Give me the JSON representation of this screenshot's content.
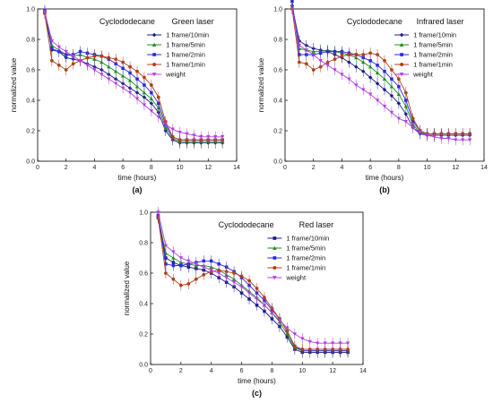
{
  "chart_data": [
    {
      "panel_label": "(a)",
      "type": "line",
      "title": "Cyclododecane",
      "subtitle": "Green laser",
      "subtitle_color": "#2e8b2e",
      "xlabel": "time (hours)",
      "ylabel": "normalized value",
      "xlim": [
        0,
        14
      ],
      "ylim": [
        0,
        1.0
      ],
      "xticks": [
        "0",
        "2",
        "4",
        "6",
        "8",
        "10",
        "12",
        "14"
      ],
      "yticks": [
        "0.0",
        "0.2",
        "0.4",
        "0.6",
        "0.8",
        "1.0"
      ],
      "legend_position": "top-right",
      "series": [
        {
          "name": "1 frame/10min",
          "color": "#1a1a8c",
          "marker": "diamond",
          "x": [
            0.5,
            1,
            1.5,
            2,
            2.5,
            3,
            3.5,
            4,
            4.5,
            5,
            5.5,
            6,
            6.5,
            7,
            7.5,
            8,
            8.5,
            9,
            9.5,
            10,
            10.5,
            11,
            11.5,
            12,
            12.5,
            13
          ],
          "y": [
            0.98,
            0.73,
            0.72,
            0.68,
            0.67,
            0.66,
            0.64,
            0.62,
            0.6,
            0.57,
            0.54,
            0.51,
            0.48,
            0.45,
            0.42,
            0.38,
            0.32,
            0.2,
            0.14,
            0.12,
            0.12,
            0.12,
            0.12,
            0.12,
            0.12,
            0.12
          ]
        },
        {
          "name": "1 frame/5min",
          "color": "#1e8c1e",
          "marker": "triangle",
          "x": [
            0.5,
            1,
            1.5,
            2,
            2.5,
            3,
            3.5,
            4,
            4.5,
            5,
            5.5,
            6,
            6.5,
            7,
            7.5,
            8,
            8.5,
            9,
            9.5,
            10,
            10.5,
            11,
            11.5,
            12,
            12.5,
            13
          ],
          "y": [
            0.98,
            0.76,
            0.73,
            0.7,
            0.69,
            0.7,
            0.68,
            0.67,
            0.65,
            0.62,
            0.59,
            0.56,
            0.53,
            0.49,
            0.45,
            0.41,
            0.35,
            0.22,
            0.15,
            0.13,
            0.13,
            0.13,
            0.13,
            0.13,
            0.13,
            0.13
          ]
        },
        {
          "name": "1 frame/2min",
          "color": "#2a2ae0",
          "marker": "square",
          "x": [
            0.5,
            1,
            1.5,
            2,
            2.5,
            3,
            3.5,
            4,
            4.5,
            5,
            5.5,
            6,
            6.5,
            7,
            7.5,
            8,
            8.5,
            9,
            9.5,
            10,
            10.5,
            11,
            11.5,
            12,
            12.5,
            13
          ],
          "y": [
            0.99,
            0.74,
            0.72,
            0.7,
            0.7,
            0.72,
            0.71,
            0.7,
            0.69,
            0.67,
            0.64,
            0.61,
            0.58,
            0.54,
            0.5,
            0.45,
            0.38,
            0.24,
            0.16,
            0.14,
            0.14,
            0.14,
            0.14,
            0.14,
            0.14,
            0.14
          ]
        },
        {
          "name": "1 frame/1min",
          "color": "#b0401a",
          "marker": "circle",
          "x": [
            0.5,
            1,
            1.5,
            2,
            2.5,
            3,
            3.5,
            4,
            4.5,
            5,
            5.5,
            6,
            6.5,
            7,
            7.5,
            8,
            8.5,
            9,
            9.5,
            10,
            10.5,
            11,
            11.5,
            12,
            12.5,
            13
          ],
          "y": [
            0.97,
            0.66,
            0.63,
            0.6,
            0.64,
            0.66,
            0.68,
            0.69,
            0.69,
            0.68,
            0.67,
            0.65,
            0.62,
            0.59,
            0.55,
            0.5,
            0.42,
            0.26,
            0.16,
            0.14,
            0.14,
            0.14,
            0.14,
            0.14,
            0.14,
            0.14
          ]
        },
        {
          "name": "weight",
          "color": "#b040e0",
          "marker": "triangle-down",
          "x": [
            0.5,
            1,
            1.5,
            2,
            2.5,
            3,
            3.5,
            4,
            4.5,
            5,
            5.5,
            6,
            6.5,
            7,
            7.5,
            8,
            8.5,
            9,
            9.5,
            10,
            10.5,
            11,
            11.5,
            12,
            12.5,
            13
          ],
          "y": [
            0.98,
            0.79,
            0.75,
            0.72,
            0.69,
            0.66,
            0.63,
            0.6,
            0.57,
            0.54,
            0.51,
            0.48,
            0.45,
            0.41,
            0.37,
            0.33,
            0.29,
            0.24,
            0.21,
            0.19,
            0.18,
            0.17,
            0.16,
            0.16,
            0.16,
            0.16
          ]
        }
      ]
    },
    {
      "panel_label": "(b)",
      "type": "line",
      "title": "Cyclododecane",
      "subtitle": "Infrared laser",
      "subtitle_color": "#8b3a1a",
      "xlabel": "time (hours)",
      "ylabel": "normalized value",
      "xlim": [
        0,
        14
      ],
      "ylim": [
        0,
        1.0
      ],
      "xticks": [
        "0",
        "2",
        "4",
        "6",
        "8",
        "10",
        "12",
        "14"
      ],
      "yticks": [
        "0.0",
        "0.2",
        "0.4",
        "0.6",
        "0.8",
        "1.0"
      ],
      "legend_position": "top-right",
      "series": [
        {
          "name": "1 frame/10min",
          "color": "#1a1a8c",
          "marker": "diamond",
          "x": [
            0.5,
            1,
            1.5,
            2,
            2.5,
            3,
            3.5,
            4,
            4.5,
            5,
            5.5,
            6,
            6.5,
            7,
            7.5,
            8,
            8.5,
            9,
            9.5,
            10,
            10.5,
            11,
            11.5,
            12,
            12.5,
            13
          ],
          "y": [
            1.02,
            0.79,
            0.76,
            0.74,
            0.73,
            0.72,
            0.7,
            0.68,
            0.65,
            0.62,
            0.59,
            0.55,
            0.51,
            0.47,
            0.43,
            0.38,
            0.31,
            0.22,
            0.18,
            0.17,
            0.17,
            0.17,
            0.17,
            0.17,
            0.17,
            0.17
          ]
        },
        {
          "name": "1 frame/5min",
          "color": "#1e8c1e",
          "marker": "triangle",
          "x": [
            0.5,
            1,
            1.5,
            2,
            2.5,
            3,
            3.5,
            4,
            4.5,
            5,
            5.5,
            6,
            6.5,
            7,
            7.5,
            8,
            8.5,
            9,
            9.5,
            10,
            10.5,
            11,
            11.5,
            12,
            12.5,
            13
          ],
          "y": [
            1.03,
            0.74,
            0.73,
            0.72,
            0.72,
            0.73,
            0.72,
            0.71,
            0.7,
            0.68,
            0.65,
            0.62,
            0.58,
            0.54,
            0.49,
            0.44,
            0.36,
            0.24,
            0.19,
            0.18,
            0.18,
            0.18,
            0.18,
            0.18,
            0.18,
            0.18
          ]
        },
        {
          "name": "1 frame/2min",
          "color": "#2a2ae0",
          "marker": "square",
          "x": [
            0.5,
            1,
            1.5,
            2,
            2.5,
            3,
            3.5,
            4,
            4.5,
            5,
            5.5,
            6,
            6.5,
            7,
            7.5,
            8,
            8.5,
            9,
            9.5,
            10,
            10.5,
            11,
            11.5,
            12,
            12.5,
            13
          ],
          "y": [
            1.05,
            0.7,
            0.7,
            0.7,
            0.71,
            0.72,
            0.72,
            0.72,
            0.71,
            0.7,
            0.68,
            0.66,
            0.63,
            0.59,
            0.54,
            0.49,
            0.4,
            0.26,
            0.2,
            0.18,
            0.18,
            0.18,
            0.18,
            0.18,
            0.18,
            0.18
          ]
        },
        {
          "name": "1 frame/1min",
          "color": "#b0401a",
          "marker": "circle",
          "x": [
            0.5,
            1,
            1.5,
            2,
            2.5,
            3,
            3.5,
            4,
            4.5,
            5,
            5.5,
            6,
            6.5,
            7,
            7.5,
            8,
            8.5,
            9,
            9.5,
            10,
            10.5,
            11,
            11.5,
            12,
            12.5,
            13
          ],
          "y": [
            1.0,
            0.65,
            0.64,
            0.6,
            0.62,
            0.65,
            0.67,
            0.69,
            0.7,
            0.7,
            0.7,
            0.71,
            0.7,
            0.66,
            0.6,
            0.54,
            0.45,
            0.28,
            0.2,
            0.18,
            0.18,
            0.18,
            0.18,
            0.18,
            0.18,
            0.18
          ]
        },
        {
          "name": "weight",
          "color": "#b040e0",
          "marker": "triangle-down",
          "x": [
            0.5,
            1,
            1.5,
            2,
            2.5,
            3,
            3.5,
            4,
            4.5,
            5,
            5.5,
            6,
            6.5,
            7,
            7.5,
            8,
            8.5,
            9,
            9.5,
            10,
            10.5,
            11,
            11.5,
            12,
            12.5,
            13
          ],
          "y": [
            1.0,
            0.76,
            0.73,
            0.7,
            0.66,
            0.63,
            0.6,
            0.57,
            0.54,
            0.5,
            0.47,
            0.44,
            0.4,
            0.36,
            0.32,
            0.28,
            0.26,
            0.22,
            0.19,
            0.17,
            0.16,
            0.15,
            0.15,
            0.14,
            0.14,
            0.14
          ]
        }
      ]
    },
    {
      "panel_label": "(c)",
      "type": "line",
      "title": "Cyclododecane",
      "subtitle": "Red laser",
      "subtitle_color": "#b02020",
      "xlabel": "time (hours)",
      "ylabel": "normalized value",
      "xlim": [
        0,
        14
      ],
      "ylim": [
        0,
        1.0
      ],
      "xticks": [
        "0",
        "2",
        "4",
        "6",
        "8",
        "10",
        "12",
        "14"
      ],
      "yticks": [
        "0.0",
        "0.2",
        "0.4",
        "0.6",
        "0.8",
        "1.0"
      ],
      "legend_position": "top-right",
      "series": [
        {
          "name": "1 frame/10min",
          "color": "#1a1a8c",
          "marker": "square",
          "x": [
            0.5,
            1,
            1.5,
            2,
            2.5,
            3,
            3.5,
            4,
            4.5,
            5,
            5.5,
            6,
            6.5,
            7,
            7.5,
            8,
            8.5,
            9,
            9.5,
            10,
            10.5,
            11,
            11.5,
            12,
            12.5,
            13
          ],
          "y": [
            0.97,
            0.7,
            0.67,
            0.65,
            0.64,
            0.63,
            0.62,
            0.6,
            0.57,
            0.54,
            0.51,
            0.47,
            0.43,
            0.39,
            0.35,
            0.3,
            0.25,
            0.18,
            0.1,
            0.08,
            0.08,
            0.08,
            0.08,
            0.08,
            0.08,
            0.08
          ]
        },
        {
          "name": "1 frame/5min",
          "color": "#1e8c1e",
          "marker": "triangle",
          "x": [
            0.5,
            1,
            1.5,
            2,
            2.5,
            3,
            3.5,
            4,
            4.5,
            5,
            5.5,
            6,
            6.5,
            7,
            7.5,
            8,
            8.5,
            9,
            9.5,
            10,
            10.5,
            11,
            11.5,
            12,
            12.5,
            13
          ],
          "y": [
            0.97,
            0.73,
            0.7,
            0.67,
            0.66,
            0.65,
            0.65,
            0.64,
            0.62,
            0.59,
            0.56,
            0.52,
            0.48,
            0.44,
            0.39,
            0.34,
            0.28,
            0.2,
            0.11,
            0.09,
            0.09,
            0.09,
            0.09,
            0.09,
            0.09,
            0.09
          ]
        },
        {
          "name": "1 frame/2min",
          "color": "#2a2ae0",
          "marker": "square",
          "x": [
            0.5,
            1,
            1.5,
            2,
            2.5,
            3,
            3.5,
            4,
            4.5,
            5,
            5.5,
            6,
            6.5,
            7,
            7.5,
            8,
            8.5,
            9,
            9.5,
            10,
            10.5,
            11,
            11.5,
            12,
            12.5,
            13
          ],
          "y": [
            0.98,
            0.66,
            0.65,
            0.65,
            0.66,
            0.67,
            0.68,
            0.68,
            0.66,
            0.64,
            0.61,
            0.57,
            0.52,
            0.47,
            0.42,
            0.36,
            0.3,
            0.22,
            0.12,
            0.09,
            0.09,
            0.09,
            0.09,
            0.09,
            0.09,
            0.09
          ]
        },
        {
          "name": "1 frame/1min",
          "color": "#b0401a",
          "marker": "circle",
          "x": [
            0.5,
            1,
            1.5,
            2,
            2.5,
            3,
            3.5,
            4,
            4.5,
            5,
            5.5,
            6,
            6.5,
            7,
            7.5,
            8,
            8.5,
            9,
            9.5,
            10,
            10.5,
            11,
            11.5,
            12,
            12.5,
            13
          ],
          "y": [
            0.96,
            0.6,
            0.56,
            0.52,
            0.53,
            0.56,
            0.59,
            0.61,
            0.62,
            0.61,
            0.6,
            0.58,
            0.55,
            0.5,
            0.44,
            0.37,
            0.3,
            0.22,
            0.12,
            0.1,
            0.1,
            0.1,
            0.1,
            0.1,
            0.1,
            0.1
          ]
        },
        {
          "name": "weight",
          "color": "#b040e0",
          "marker": "triangle-down",
          "x": [
            0.5,
            1,
            1.5,
            2,
            2.5,
            3,
            3.5,
            4,
            4.5,
            5,
            5.5,
            6,
            6.5,
            7,
            7.5,
            8,
            8.5,
            9,
            9.5,
            10,
            10.5,
            11,
            11.5,
            12,
            12.5,
            13
          ],
          "y": [
            1.0,
            0.78,
            0.74,
            0.7,
            0.68,
            0.66,
            0.64,
            0.62,
            0.6,
            0.57,
            0.54,
            0.51,
            0.47,
            0.43,
            0.39,
            0.34,
            0.29,
            0.24,
            0.2,
            0.17,
            0.15,
            0.14,
            0.14,
            0.14,
            0.14,
            0.14
          ]
        }
      ]
    }
  ]
}
